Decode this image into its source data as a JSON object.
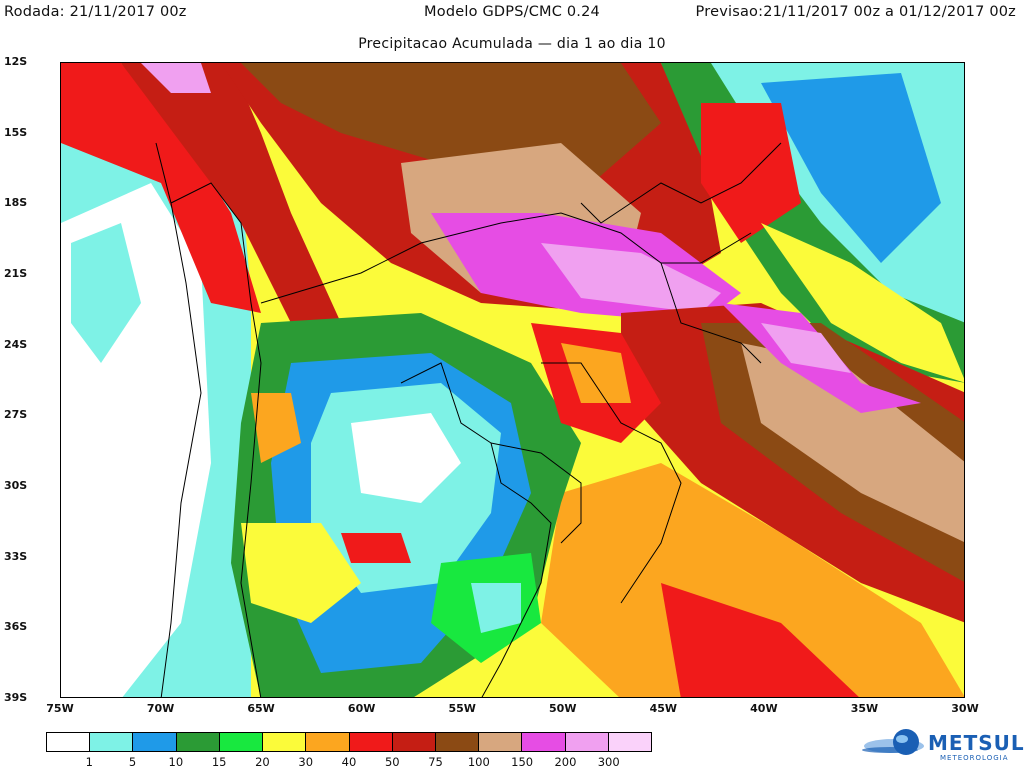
{
  "header": {
    "run_label": "Rodada: 21/11/2017 00z",
    "model": "Modelo GDPS/CMC 0.24",
    "forecast": "Previsao:21/11/2017 00z a 01/12/2017 00z"
  },
  "subtitle": "Precipitacao Acumulada — dia 1 ao dia 10",
  "axes": {
    "latitudes": [
      "12S",
      "15S",
      "18S",
      "21S",
      "24S",
      "27S",
      "30S",
      "33S",
      "36S",
      "39S"
    ],
    "longitudes": [
      "75W",
      "70W",
      "65W",
      "60W",
      "55W",
      "50W",
      "45W",
      "40W",
      "35W",
      "30W"
    ]
  },
  "legend": {
    "colors": [
      "#ffffff",
      "#7ef2e6",
      "#1f9ae8",
      "#2b9b35",
      "#18e83f",
      "#fbfb3a",
      "#fca61f",
      "#f01a1a",
      "#c51e14",
      "#8b4a14",
      "#d7a77f",
      "#e64de4",
      "#f0a0f0",
      "#fad2fa"
    ],
    "ticks": [
      "1",
      "5",
      "10",
      "15",
      "20",
      "30",
      "40",
      "50",
      "75",
      "100",
      "150",
      "200",
      "300"
    ]
  },
  "logo": {
    "name": "METSUL",
    "subtitle": "METEOROLOGIA",
    "icon": "globe-icon"
  }
}
